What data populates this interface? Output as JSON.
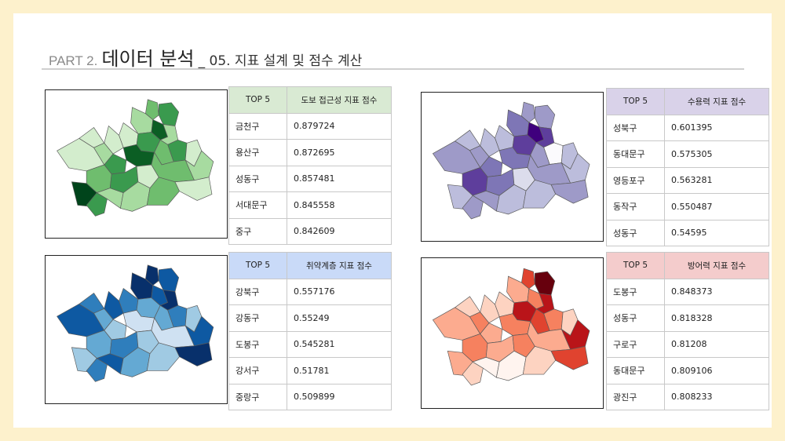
{
  "header": {
    "part": "PART 2.",
    "title": "데이터 분석",
    "subtitle": "_ 05. 지표 설계 및 점수 계산"
  },
  "panels": [
    {
      "id": "walk",
      "colors": [
        "#f3f9f1",
        "#d3edcd",
        "#a7dba0",
        "#6fbd6e",
        "#3a9a4e",
        "#0b5e24",
        "#00441b"
      ],
      "col1": "TOP 5",
      "col2": "도보 접근성 지표 점수",
      "rows": [
        {
          "name": "금천구",
          "score": "0.879724"
        },
        {
          "name": "용산구",
          "score": "0.872695"
        },
        {
          "name": "성동구",
          "score": "0.857481"
        },
        {
          "name": "서대문구",
          "score": "0.845558"
        },
        {
          "name": "중구",
          "score": "0.842609"
        }
      ]
    },
    {
      "id": "capacity",
      "colors": [
        "#fbfafd",
        "#dcdcec",
        "#bcbddc",
        "#9e9ac8",
        "#7e76b6",
        "#5e3e9c",
        "#3f007d"
      ],
      "col1": "TOP 5",
      "col2": "수용력 지표 점수",
      "rows": [
        {
          "name": "성북구",
          "score": "0.601395"
        },
        {
          "name": "동대문구",
          "score": "0.575305"
        },
        {
          "name": "영등포구",
          "score": "0.563281"
        },
        {
          "name": "동작구",
          "score": "0.550487"
        },
        {
          "name": "성동구",
          "score": "0.54595"
        }
      ]
    },
    {
      "id": "vulnerable",
      "colors": [
        "#f5f9fe",
        "#cfe1f2",
        "#a0cae3",
        "#64a9d3",
        "#2f7ebc",
        "#0e59a2",
        "#08306b"
      ],
      "col1": "TOP 5",
      "col2": "취약계층 지표 점수",
      "rows": [
        {
          "name": "강북구",
          "score": "0.557176"
        },
        {
          "name": "강동구",
          "score": "0.55249"
        },
        {
          "name": "도봉구",
          "score": "0.545281"
        },
        {
          "name": "강서구",
          "score": "0.51781"
        },
        {
          "name": "중랑구",
          "score": "0.509899"
        }
      ]
    },
    {
      "id": "defense",
      "colors": [
        "#fff4ef",
        "#fdd3c1",
        "#fcab8f",
        "#f6815f",
        "#e0432f",
        "#b91419",
        "#67000d"
      ],
      "col1": "TOP 5",
      "col2": "방어력 지표 점수",
      "rows": [
        {
          "name": "도봉구",
          "score": "0.848373"
        },
        {
          "name": "성동구",
          "score": "0.818328"
        },
        {
          "name": "구로구",
          "score": "0.81208"
        },
        {
          "name": "동대문구",
          "score": "0.809106"
        },
        {
          "name": "광진구",
          "score": "0.808233"
        }
      ]
    }
  ]
}
